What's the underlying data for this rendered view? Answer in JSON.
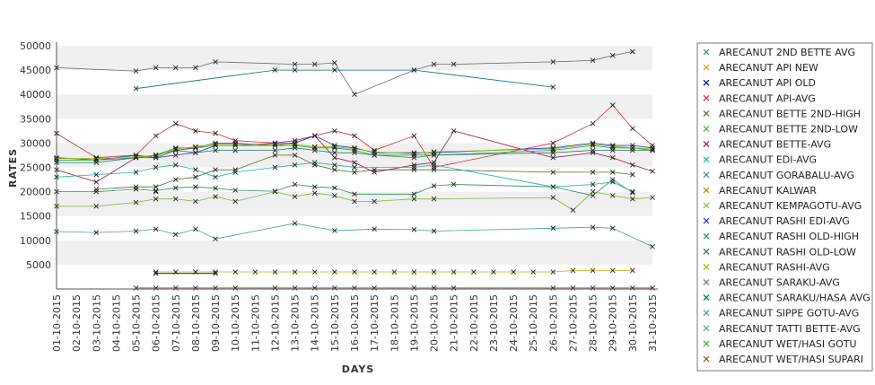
{
  "chart_data": {
    "type": "line",
    "xlabel": "DAYS",
    "ylabel": "RATES",
    "ylim": [
      0,
      50000
    ],
    "yticks": [
      5000,
      10000,
      15000,
      20000,
      25000,
      30000,
      35000,
      40000,
      45000,
      50000
    ],
    "x": [
      "01-10-2015",
      "02-10-2015",
      "03-10-2015",
      "04-10-2015",
      "05-10-2015",
      "06-10-2015",
      "07-10-2015",
      "08-10-2015",
      "09-10-2015",
      "10-10-2015",
      "11-10-2015",
      "12-10-2015",
      "13-10-2015",
      "14-10-2015",
      "15-10-2015",
      "16-10-2015",
      "17-10-2015",
      "18-10-2015",
      "19-10-2015",
      "20-10-2015",
      "21-10-2015",
      "22-10-2015",
      "23-10-2015",
      "24-10-2015",
      "25-10-2015",
      "26-10-2015",
      "27-10-2015",
      "28-10-2015",
      "29-10-2015",
      "30-10-2015",
      "31-10-2015"
    ],
    "grid_bands": true,
    "legend_position": "right",
    "series": [
      {
        "name": "ARECANUT 2ND BETTE AVG",
        "color": "#2e8b57",
        "values": [
          20000,
          null,
          20000,
          null,
          20500,
          20200,
          20800,
          21000,
          20700,
          20300,
          null,
          20100,
          21500,
          21000,
          20800,
          19500,
          null,
          null,
          19500,
          21200,
          21500,
          null,
          null,
          null,
          null,
          21000,
          null,
          19200,
          22500,
          19800,
          null
        ]
      },
      {
        "name": "ARECANUT API NEW",
        "color": "#b8b800",
        "values": [
          null,
          null,
          null,
          null,
          null,
          3500,
          3500,
          3500,
          3500,
          3500,
          3500,
          3500,
          3500,
          3500,
          3500,
          3500,
          3500,
          3500,
          3500,
          3500,
          3500,
          3500,
          3500,
          3500,
          3500,
          3500,
          3800,
          3800,
          3800,
          3800,
          null
        ]
      },
      {
        "name": "ARECANUT API OLD",
        "color": "#00008b",
        "values": [
          null,
          null,
          null,
          null,
          null,
          3200,
          null,
          null,
          3200,
          null,
          null,
          null,
          null,
          null,
          null,
          null,
          null,
          null,
          null,
          null,
          null,
          null,
          null,
          null,
          null,
          null,
          null,
          null,
          null,
          null,
          null
        ]
      },
      {
        "name": "ARECANUT API-AVG",
        "color": "#cc3333",
        "values": [
          32000,
          null,
          27000,
          null,
          27500,
          31500,
          34000,
          32500,
          32000,
          30500,
          null,
          30000,
          30000,
          31500,
          32500,
          31500,
          28500,
          null,
          31500,
          25000,
          null,
          null,
          null,
          null,
          null,
          30000,
          null,
          34000,
          37800,
          33000,
          29500
        ]
      },
      {
        "name": "ARECANUT BETTE 2ND-HIGH",
        "color": "#556b2f",
        "values": [
          null,
          null,
          20500,
          null,
          21000,
          21000,
          22500,
          23000,
          24500,
          24500,
          null,
          27500,
          27500,
          25500,
          24500,
          24000,
          24500,
          null,
          24500,
          24500,
          null,
          null,
          null,
          null,
          null,
          24000,
          null,
          24000,
          24000,
          23500,
          null
        ]
      },
      {
        "name": "ARECANUT BETTE 2ND-LOW",
        "color": "#3cb043",
        "values": [
          null,
          null,
          null,
          null,
          null,
          20000,
          null,
          null,
          null,
          null,
          null,
          null,
          null,
          null,
          null,
          null,
          null,
          null,
          null,
          null,
          null,
          null,
          null,
          null,
          null,
          null,
          null,
          null,
          null,
          null,
          null
        ]
      },
      {
        "name": "ARECANUT BETTE-AVG",
        "color": "#8b1a4a",
        "values": [
          24500,
          null,
          22000,
          null,
          27000,
          27500,
          28500,
          29000,
          30000,
          30000,
          null,
          29500,
          30000,
          31500,
          27000,
          26000,
          24000,
          null,
          25500,
          26000,
          32500,
          null,
          null,
          null,
          null,
          27000,
          null,
          28000,
          27000,
          25500,
          24200
        ]
      },
      {
        "name": "ARECANUT EDI-AVG",
        "color": "#20b2aa",
        "values": [
          23000,
          null,
          23500,
          null,
          24000,
          25000,
          25500,
          24500,
          23000,
          24000,
          null,
          25000,
          25500,
          26000,
          25500,
          25000,
          null,
          null,
          25000,
          25500,
          null,
          null,
          null,
          null,
          null,
          21000,
          null,
          21500,
          22000,
          20000,
          null
        ]
      },
      {
        "name": "ARECANUT GORABALU-AVG",
        "color": "#4682b4",
        "values": [
          null,
          null,
          null,
          null,
          null,
          null,
          null,
          null,
          null,
          null,
          null,
          null,
          null,
          null,
          null,
          null,
          null,
          null,
          null,
          null,
          null,
          null,
          null,
          null,
          null,
          null,
          null,
          null,
          null,
          null,
          null
        ]
      },
      {
        "name": "ARECANUT KALWAR",
        "color": "#b8860b",
        "values": [
          null,
          null,
          null,
          null,
          null,
          null,
          null,
          null,
          null,
          null,
          null,
          null,
          null,
          null,
          null,
          null,
          null,
          null,
          null,
          null,
          null,
          null,
          null,
          null,
          null,
          null,
          null,
          null,
          null,
          null,
          null
        ]
      },
      {
        "name": "ARECANUT KEMPAGOTU-AVG",
        "color": "#7cb342",
        "values": [
          17000,
          null,
          17000,
          null,
          17800,
          18500,
          18500,
          18000,
          19000,
          18000,
          null,
          20000,
          19000,
          19700,
          19200,
          18000,
          18000,
          null,
          18500,
          18500,
          null,
          null,
          null,
          null,
          null,
          18800,
          16200,
          20000,
          19200,
          18500,
          18800
        ]
      },
      {
        "name": "ARECANUT RASHI EDI-AVG",
        "color": "#3333cc",
        "values": [
          27000,
          null,
          26500,
          null,
          27500,
          27000,
          27500,
          28000,
          29500,
          29500,
          null,
          30000,
          30500,
          31500,
          29500,
          29000,
          28000,
          null,
          28000,
          28000,
          null,
          null,
          null,
          null,
          null,
          29000,
          null,
          30000,
          29500,
          29500,
          29000
        ]
      },
      {
        "name": "ARECANUT RASHI OLD-HIGH",
        "color": "#1e9e3e",
        "values": [
          26500,
          null,
          26500,
          null,
          27000,
          27500,
          29000,
          29000,
          29500,
          29500,
          null,
          29500,
          29500,
          29000,
          29000,
          28500,
          27500,
          null,
          27000,
          27500,
          null,
          null,
          null,
          null,
          null,
          28500,
          null,
          29500,
          29000,
          29000,
          28500
        ]
      },
      {
        "name": "ARECANUT RASHI OLD-LOW",
        "color": "#2f6f6f",
        "values": [
          26000,
          null,
          26000,
          null,
          27000,
          27000,
          28500,
          28000,
          28500,
          28500,
          null,
          28500,
          29000,
          28500,
          28000,
          28000,
          27500,
          null,
          27500,
          27500,
          null,
          null,
          null,
          null,
          null,
          28000,
          null,
          28500,
          28500,
          28500,
          28500
        ]
      },
      {
        "name": "ARECANUT RASHI-AVG",
        "color": "#8fbc00",
        "values": [
          26800,
          null,
          26800,
          null,
          27200,
          27300,
          28800,
          29200,
          29800,
          29800,
          null,
          29800,
          29800,
          29200,
          29200,
          28800,
          28200,
          null,
          27800,
          28200,
          null,
          null,
          null,
          null,
          null,
          28800,
          null,
          29800,
          29300,
          29000,
          28800
        ]
      },
      {
        "name": "ARECANUT SARAKU-AVG",
        "color": "#6b6b6b",
        "values": [
          45500,
          null,
          null,
          null,
          44800,
          45500,
          45500,
          45500,
          46700,
          null,
          null,
          null,
          46200,
          46200,
          46500,
          40000,
          null,
          null,
          45000,
          46200,
          46200,
          null,
          null,
          null,
          null,
          46700,
          null,
          47000,
          48000,
          48800,
          null
        ]
      },
      {
        "name": "ARECANUT SARAKU/HASA AVG",
        "color": "#007070",
        "values": [
          null,
          null,
          null,
          null,
          41200,
          null,
          null,
          null,
          null,
          null,
          null,
          45000,
          45000,
          null,
          45000,
          null,
          null,
          null,
          45000,
          null,
          null,
          null,
          null,
          null,
          null,
          41500,
          null,
          null,
          null,
          null,
          null
        ]
      },
      {
        "name": "ARECANUT SIPPE GOTU-AVG",
        "color": "#40a0a0",
        "values": [
          11800,
          null,
          11600,
          null,
          11900,
          12300,
          11200,
          12300,
          10300,
          null,
          null,
          null,
          13500,
          null,
          12000,
          null,
          12300,
          null,
          12200,
          11900,
          null,
          null,
          null,
          null,
          null,
          12500,
          null,
          12700,
          12500,
          null,
          8700
        ]
      },
      {
        "name": "ARECANUT TATTI BETTE-AVG",
        "color": "#5f9ea0",
        "values": [
          null,
          null,
          null,
          null,
          null,
          null,
          null,
          null,
          null,
          null,
          null,
          null,
          null,
          null,
          null,
          null,
          null,
          null,
          null,
          null,
          null,
          null,
          null,
          null,
          null,
          null,
          null,
          null,
          null,
          null,
          null
        ]
      },
      {
        "name": "ARECANUT WET/HASI GOTU",
        "color": "#33aa33",
        "values": [
          null,
          null,
          null,
          null,
          null,
          null,
          null,
          null,
          null,
          null,
          null,
          null,
          null,
          null,
          null,
          null,
          null,
          null,
          null,
          null,
          null,
          null,
          null,
          null,
          null,
          null,
          null,
          null,
          null,
          null,
          null
        ]
      },
      {
        "name": "ARECANUT WET/HASI SUPARI",
        "color": "#8b4513",
        "values": [
          null,
          null,
          null,
          null,
          200,
          200,
          200,
          200,
          200,
          200,
          null,
          200,
          200,
          200,
          200,
          200,
          200,
          null,
          200,
          200,
          200,
          null,
          null,
          null,
          null,
          200,
          200,
          200,
          200,
          200,
          200
        ]
      }
    ]
  }
}
